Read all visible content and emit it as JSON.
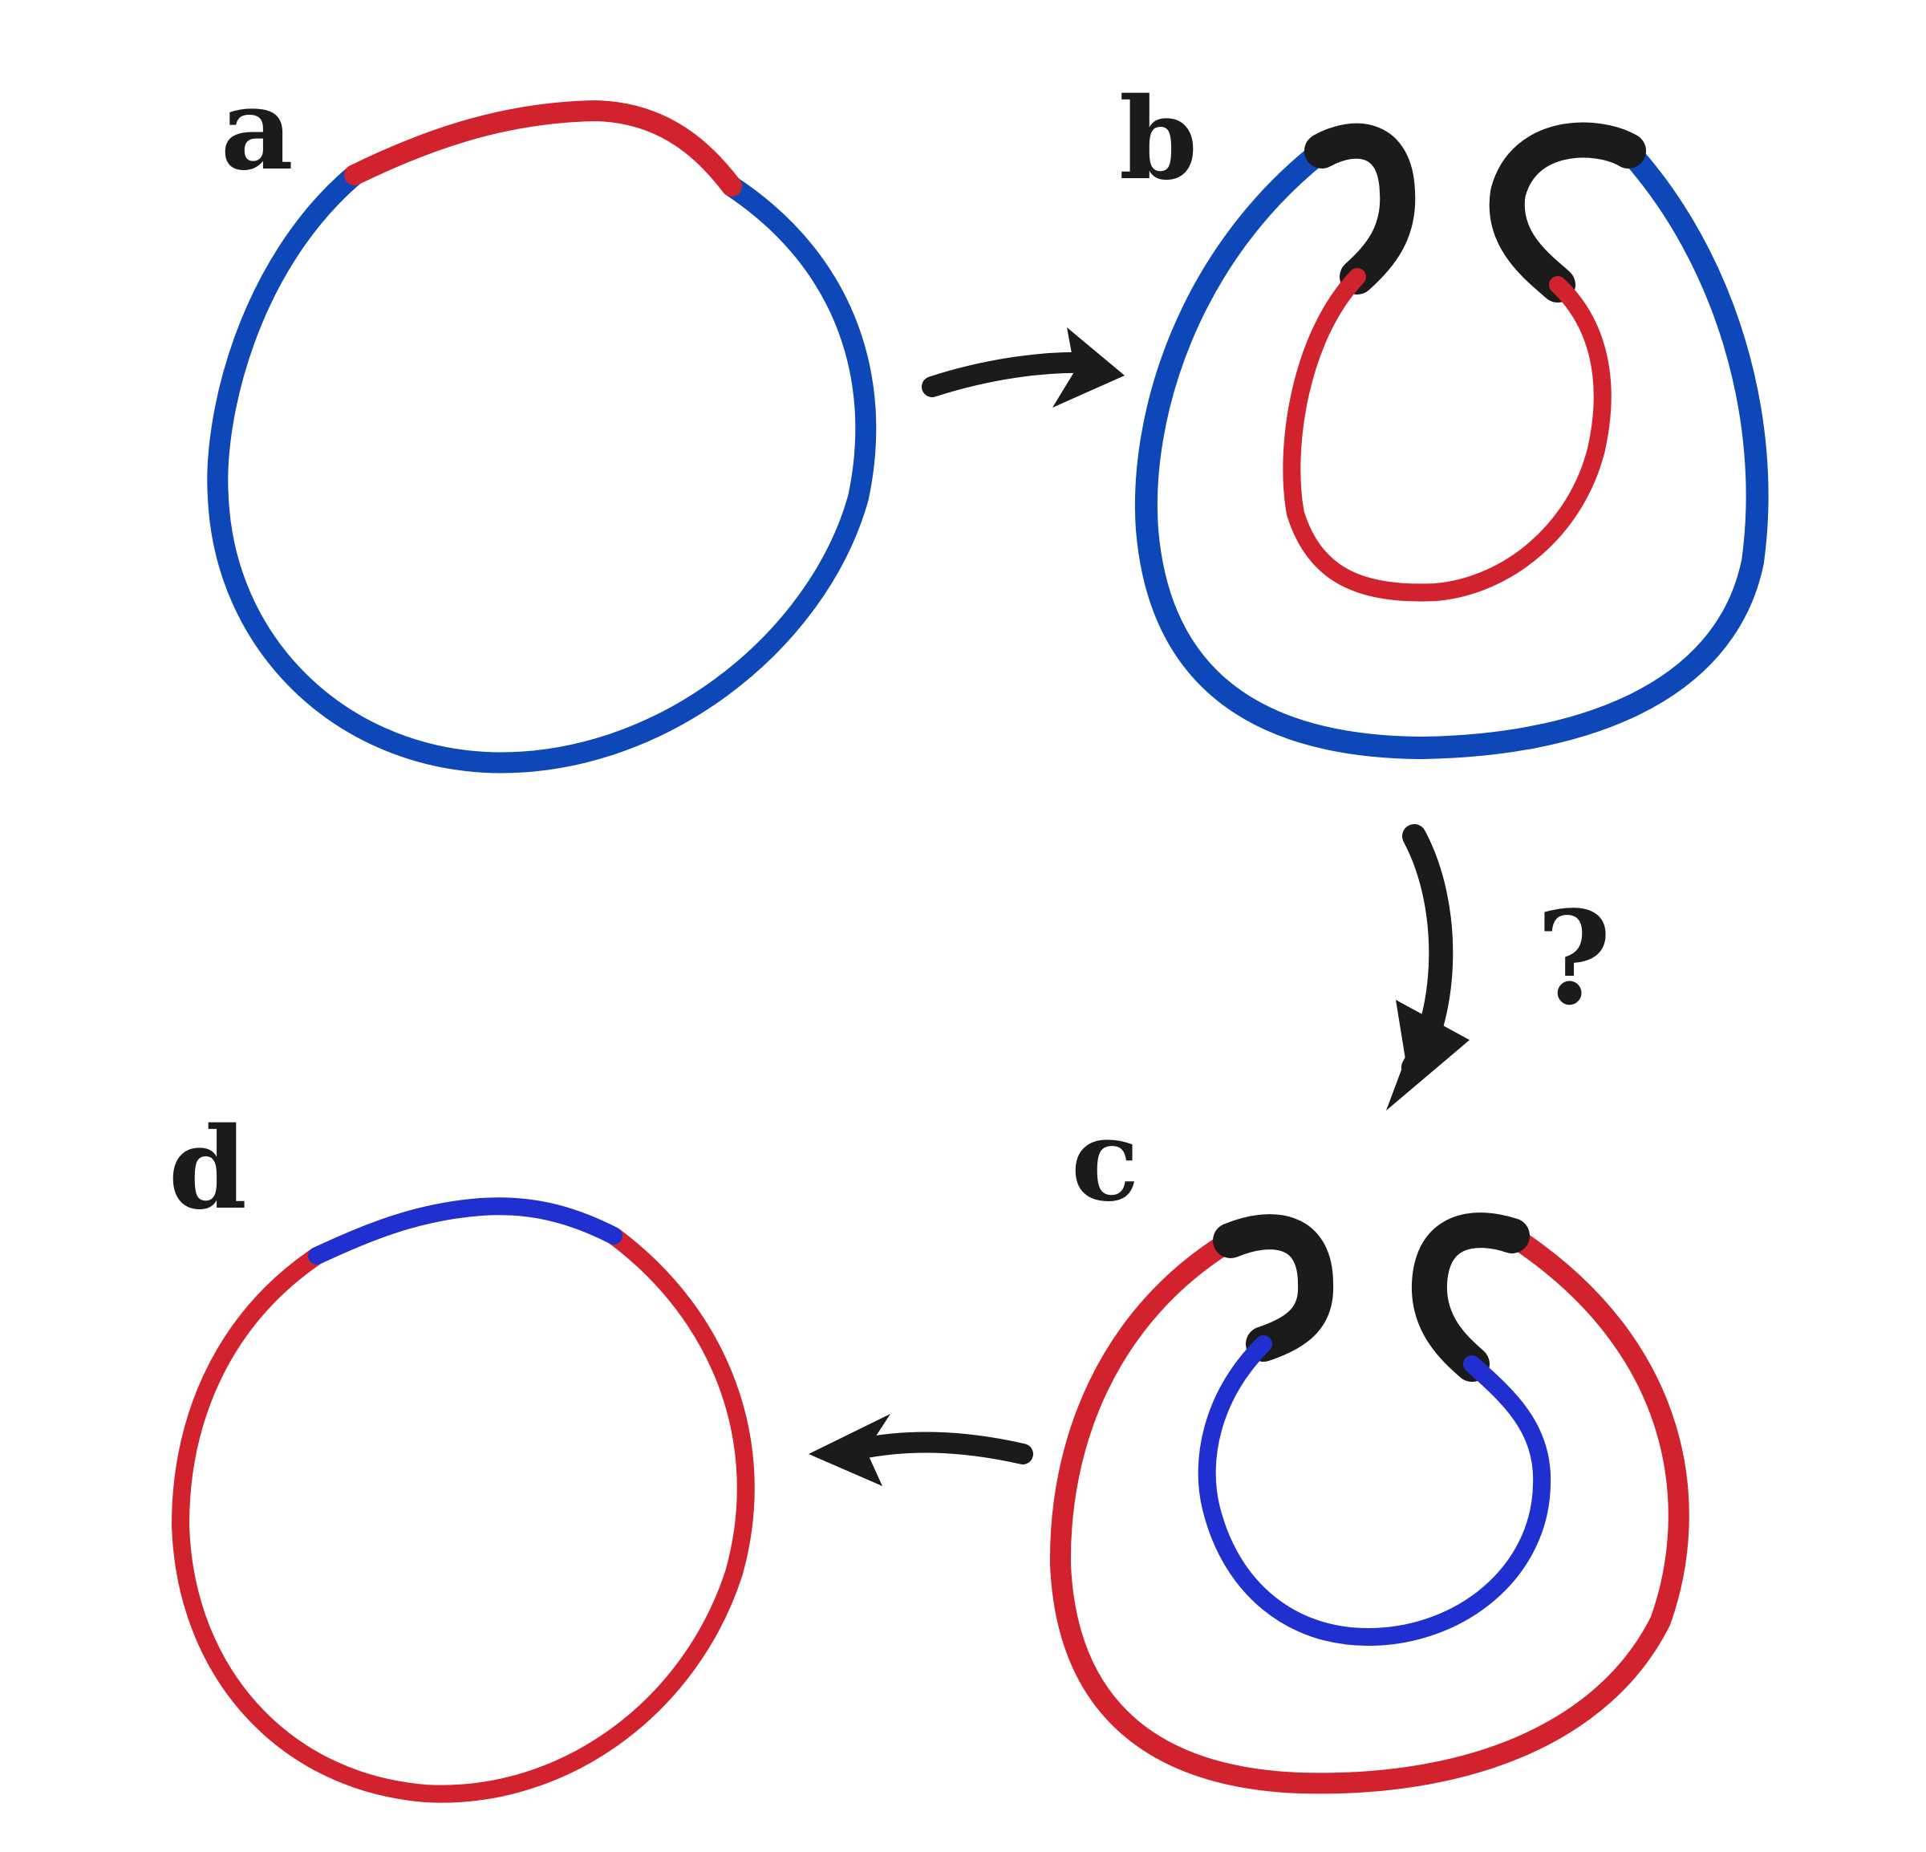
{
  "panels": {
    "a": {
      "label": "a"
    },
    "b": {
      "label": "b"
    },
    "c": {
      "label": "c"
    },
    "d": {
      "label": "d"
    }
  },
  "transition_b_to_c": {
    "mark": "?"
  },
  "colors": {
    "blue": "#0e47b8",
    "blue_light": "#1f2fd0",
    "red": "#d1222e",
    "black": "#1b1b1b",
    "background": "#ffffff"
  }
}
